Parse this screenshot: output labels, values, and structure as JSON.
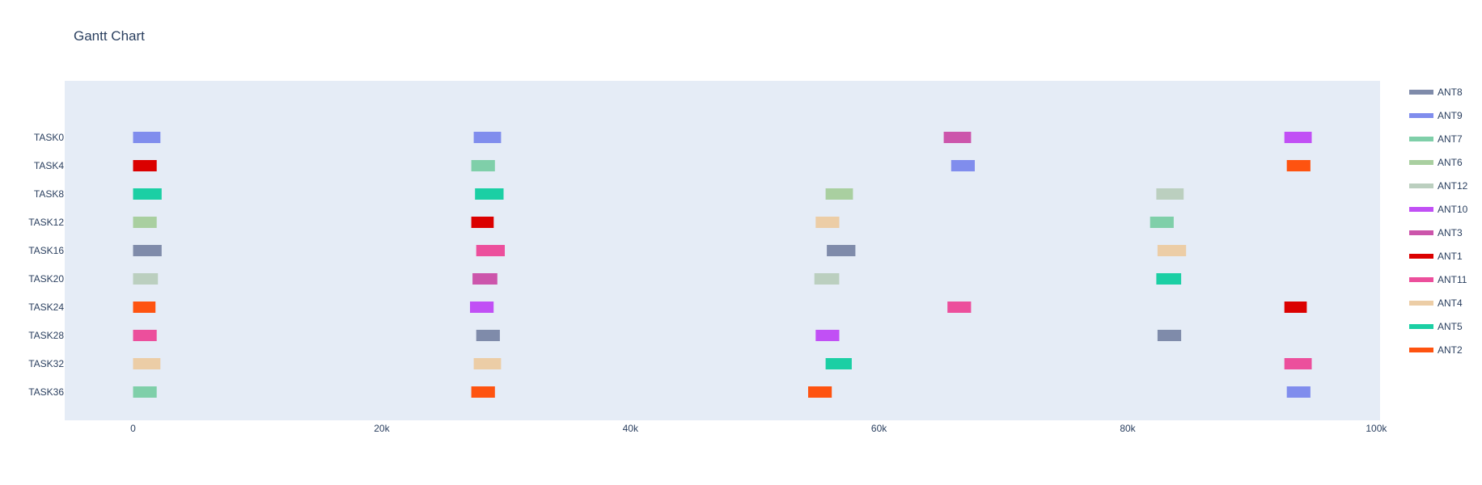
{
  "chart_data": {
    "type": "gantt",
    "title": "Gantt Chart",
    "xlim": [
      -5500,
      100300
    ],
    "x_ticks": [
      {
        "value": 0,
        "label": "0"
      },
      {
        "value": 20000,
        "label": "20k"
      },
      {
        "value": 40000,
        "label": "40k"
      },
      {
        "value": 60000,
        "label": "60k"
      },
      {
        "value": 80000,
        "label": "80k"
      },
      {
        "value": 100000,
        "label": "100k"
      }
    ],
    "tasks": [
      "TASK0",
      "TASK4",
      "TASK8",
      "TASK12",
      "TASK16",
      "TASK20",
      "TASK24",
      "TASK28",
      "TASK32",
      "TASK36"
    ],
    "series": [
      {
        "name": "ANT8",
        "color": "#7f8baa",
        "bars": [
          {
            "task": "TASK16",
            "start": 0,
            "end": 2300
          },
          {
            "task": "TASK16",
            "start": 55800,
            "end": 58100
          },
          {
            "task": "TASK28",
            "start": 27600,
            "end": 29500
          },
          {
            "task": "TASK28",
            "start": 82400,
            "end": 84300
          }
        ]
      },
      {
        "name": "ANT9",
        "color": "#808ded",
        "bars": [
          {
            "task": "TASK0",
            "start": 0,
            "end": 2200
          },
          {
            "task": "TASK0",
            "start": 27400,
            "end": 29600
          },
          {
            "task": "TASK4",
            "start": 65800,
            "end": 67700
          },
          {
            "task": "TASK36",
            "start": 92800,
            "end": 94700
          }
        ]
      },
      {
        "name": "ANT7",
        "color": "#7fcfa9",
        "bars": [
          {
            "task": "TASK4",
            "start": 27200,
            "end": 29100
          },
          {
            "task": "TASK12",
            "start": 81800,
            "end": 83700
          },
          {
            "task": "TASK36",
            "start": 0,
            "end": 1900
          }
        ]
      },
      {
        "name": "ANT6",
        "color": "#a9cfa0",
        "bars": [
          {
            "task": "TASK8",
            "start": 55700,
            "end": 57900
          },
          {
            "task": "TASK12",
            "start": 0,
            "end": 1900
          }
        ]
      },
      {
        "name": "ANT12",
        "color": "#bbcfbf",
        "bars": [
          {
            "task": "TASK8",
            "start": 82300,
            "end": 84500
          },
          {
            "task": "TASK20",
            "start": 0,
            "end": 2000
          },
          {
            "task": "TASK20",
            "start": 54800,
            "end": 56800
          }
        ]
      },
      {
        "name": "ANT10",
        "color": "#c150f5",
        "bars": [
          {
            "task": "TASK0",
            "start": 92600,
            "end": 94800
          },
          {
            "task": "TASK24",
            "start": 27100,
            "end": 29000
          },
          {
            "task": "TASK28",
            "start": 54900,
            "end": 56800
          }
        ]
      },
      {
        "name": "ANT3",
        "color": "#cc55ab",
        "bars": [
          {
            "task": "TASK0",
            "start": 65200,
            "end": 67400
          },
          {
            "task": "TASK20",
            "start": 27300,
            "end": 29300
          }
        ]
      },
      {
        "name": "ANT1",
        "color": "#db0000",
        "bars": [
          {
            "task": "TASK4",
            "start": 0,
            "end": 1900
          },
          {
            "task": "TASK12",
            "start": 27200,
            "end": 29000
          },
          {
            "task": "TASK24",
            "start": 92600,
            "end": 94400
          }
        ]
      },
      {
        "name": "ANT11",
        "color": "#ec4f9c",
        "bars": [
          {
            "task": "TASK16",
            "start": 27600,
            "end": 29900
          },
          {
            "task": "TASK24",
            "start": 65500,
            "end": 67400
          },
          {
            "task": "TASK28",
            "start": 0,
            "end": 1900
          },
          {
            "task": "TASK32",
            "start": 92600,
            "end": 94800
          }
        ]
      },
      {
        "name": "ANT4",
        "color": "#eccda6",
        "bars": [
          {
            "task": "TASK12",
            "start": 54900,
            "end": 56800
          },
          {
            "task": "TASK16",
            "start": 82400,
            "end": 84700
          },
          {
            "task": "TASK32",
            "start": 0,
            "end": 2200
          },
          {
            "task": "TASK32",
            "start": 27400,
            "end": 29600
          }
        ]
      },
      {
        "name": "ANT5",
        "color": "#1bcfa4",
        "bars": [
          {
            "task": "TASK8",
            "start": 0,
            "end": 2300
          },
          {
            "task": "TASK8",
            "start": 27500,
            "end": 29800
          },
          {
            "task": "TASK20",
            "start": 82300,
            "end": 84300
          },
          {
            "task": "TASK32",
            "start": 55700,
            "end": 57800
          }
        ]
      },
      {
        "name": "ANT2",
        "color": "#fe5310",
        "bars": [
          {
            "task": "TASK4",
            "start": 92800,
            "end": 94700
          },
          {
            "task": "TASK24",
            "start": 0,
            "end": 1800
          },
          {
            "task": "TASK36",
            "start": 27200,
            "end": 29100
          },
          {
            "task": "TASK36",
            "start": 54300,
            "end": 56200
          }
        ]
      }
    ],
    "plot_background": "#e5ecf6",
    "legend_position": "right"
  }
}
